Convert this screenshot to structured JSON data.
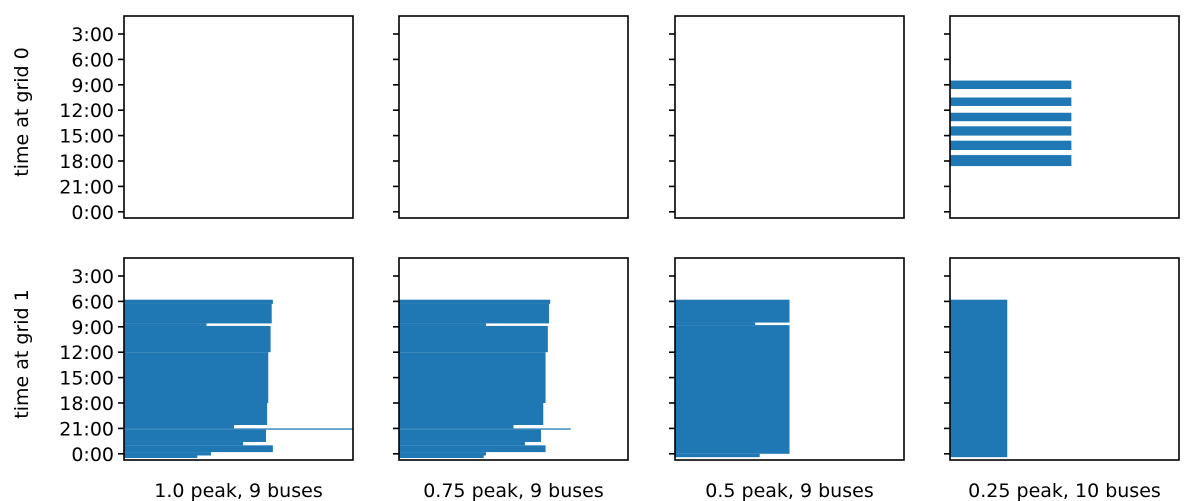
{
  "chart_data": {
    "type": "bar",
    "orientation": "horizontal",
    "color": "#1f77b4",
    "grid": false,
    "ytick_labels": [
      "3:00",
      "6:00",
      "9:00",
      "12:00",
      "15:00",
      "18:00",
      "21:00",
      "0:00"
    ],
    "ylabels": [
      "time at grid 0",
      "time at grid 1"
    ],
    "column_titles": [
      "1.0 peak, 9 buses",
      "0.75 peak, 9 buses",
      "0.5 peak, 9 buses",
      "0.25 peak, 10 buses"
    ],
    "panels": [
      {
        "row": 0,
        "col": 0,
        "bars": []
      },
      {
        "row": 0,
        "col": 1,
        "bars": []
      },
      {
        "row": 0,
        "col": 2,
        "bars": []
      },
      {
        "row": 0,
        "col": 3,
        "bars": [
          {
            "t0": 8.5,
            "t1": 9.5,
            "x": 0.53
          },
          {
            "t0": 10.5,
            "t1": 11.5,
            "x": 0.53
          },
          {
            "t0": 12.3,
            "t1": 13.3,
            "x": 0.53
          },
          {
            "t0": 13.9,
            "t1": 15.0,
            "x": 0.53
          },
          {
            "t0": 15.6,
            "t1": 16.7,
            "x": 0.53
          },
          {
            "t0": 17.3,
            "t1": 18.6,
            "x": 0.53
          }
        ]
      },
      {
        "row": 1,
        "col": 0,
        "bars": [
          {
            "t0": 5.8,
            "t1": 6.3,
            "x": 0.65
          },
          {
            "t0": 6.3,
            "t1": 8.6,
            "x": 0.645
          },
          {
            "t0": 8.6,
            "t1": 8.9,
            "x": 0.36
          },
          {
            "t0": 8.9,
            "t1": 12.0,
            "x": 0.64
          },
          {
            "t0": 12.0,
            "t1": 18.0,
            "x": 0.63
          },
          {
            "t0": 18.0,
            "t1": 20.6,
            "x": 0.625
          },
          {
            "t0": 20.6,
            "t1": 21.0,
            "x": 0.48
          },
          {
            "t0": 21.0,
            "t1": 21.15,
            "x": 1.0
          },
          {
            "t0": 21.15,
            "t1": 22.6,
            "x": 0.62
          },
          {
            "t0": 22.6,
            "t1": 23.0,
            "x": 0.52
          },
          {
            "t0": 23.0,
            "t1": 23.8,
            "x": 0.65
          },
          {
            "t0": 23.8,
            "t1": 24.2,
            "x": 0.38
          },
          {
            "t0": 24.2,
            "t1": 24.5,
            "x": 0.32
          }
        ]
      },
      {
        "row": 1,
        "col": 1,
        "bars": [
          {
            "t0": 5.8,
            "t1": 6.3,
            "x": 0.66
          },
          {
            "t0": 6.3,
            "t1": 8.6,
            "x": 0.655
          },
          {
            "t0": 8.6,
            "t1": 8.9,
            "x": 0.38
          },
          {
            "t0": 8.9,
            "t1": 12.0,
            "x": 0.65
          },
          {
            "t0": 12.0,
            "t1": 18.0,
            "x": 0.64
          },
          {
            "t0": 18.0,
            "t1": 20.6,
            "x": 0.63
          },
          {
            "t0": 20.6,
            "t1": 21.0,
            "x": 0.5
          },
          {
            "t0": 21.0,
            "t1": 21.15,
            "x": 0.75
          },
          {
            "t0": 21.15,
            "t1": 22.6,
            "x": 0.62
          },
          {
            "t0": 22.6,
            "t1": 23.0,
            "x": 0.55
          },
          {
            "t0": 23.0,
            "t1": 23.8,
            "x": 0.64
          },
          {
            "t0": 23.8,
            "t1": 24.2,
            "x": 0.38
          },
          {
            "t0": 24.2,
            "t1": 24.5,
            "x": 0.37
          }
        ]
      },
      {
        "row": 1,
        "col": 2,
        "bars": [
          {
            "t0": 5.8,
            "t1": 8.5,
            "x": 0.5
          },
          {
            "t0": 8.5,
            "t1": 8.8,
            "x": 0.35
          },
          {
            "t0": 8.8,
            "t1": 24.0,
            "x": 0.5
          },
          {
            "t0": 24.0,
            "t1": 24.4,
            "x": 0.37
          }
        ]
      },
      {
        "row": 1,
        "col": 3,
        "bars": [
          {
            "t0": 5.8,
            "t1": 24.4,
            "x": 0.25
          }
        ]
      }
    ]
  }
}
